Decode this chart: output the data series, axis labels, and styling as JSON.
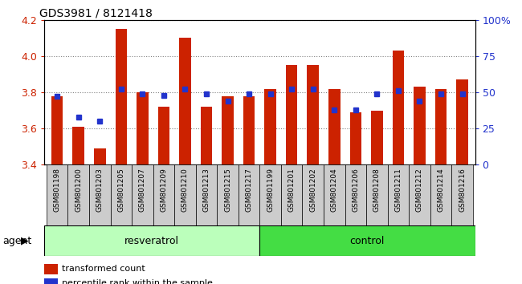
{
  "title": "GDS3981 / 8121418",
  "samples": [
    "GSM801198",
    "GSM801200",
    "GSM801203",
    "GSM801205",
    "GSM801207",
    "GSM801209",
    "GSM801210",
    "GSM801213",
    "GSM801215",
    "GSM801217",
    "GSM801199",
    "GSM801201",
    "GSM801202",
    "GSM801204",
    "GSM801206",
    "GSM801208",
    "GSM801211",
    "GSM801212",
    "GSM801214",
    "GSM801216"
  ],
  "transformed_count": [
    3.78,
    3.61,
    3.49,
    4.15,
    3.8,
    3.72,
    4.1,
    3.72,
    3.78,
    3.78,
    3.82,
    3.95,
    3.95,
    3.82,
    3.69,
    3.7,
    4.03,
    3.83,
    3.82,
    3.87
  ],
  "percentile_rank": [
    47,
    33,
    30,
    52,
    49,
    48,
    52,
    49,
    44,
    49,
    49,
    52,
    52,
    38,
    38,
    49,
    51,
    44,
    49,
    49
  ],
  "group": [
    "resveratrol",
    "resveratrol",
    "resveratrol",
    "resveratrol",
    "resveratrol",
    "resveratrol",
    "resveratrol",
    "resveratrol",
    "resveratrol",
    "resveratrol",
    "control",
    "control",
    "control",
    "control",
    "control",
    "control",
    "control",
    "control",
    "control",
    "control"
  ],
  "ylim_left": [
    3.4,
    4.2
  ],
  "ylim_right": [
    0,
    100
  ],
  "yticks_left": [
    3.4,
    3.6,
    3.8,
    4.0,
    4.2
  ],
  "yticks_right": [
    0,
    25,
    50,
    75,
    100
  ],
  "bar_color": "#cc2200",
  "dot_color": "#2233cc",
  "resveratrol_color": "#bbffbb",
  "control_color": "#44dd44",
  "agent_label": "agent",
  "legend1": "transformed count",
  "legend2": "percentile rank within the sample",
  "n_resveratrol": 10,
  "n_control": 10,
  "plot_bg": "#ffffff",
  "tick_bg": "#cccccc",
  "fig_bg": "#ffffff"
}
